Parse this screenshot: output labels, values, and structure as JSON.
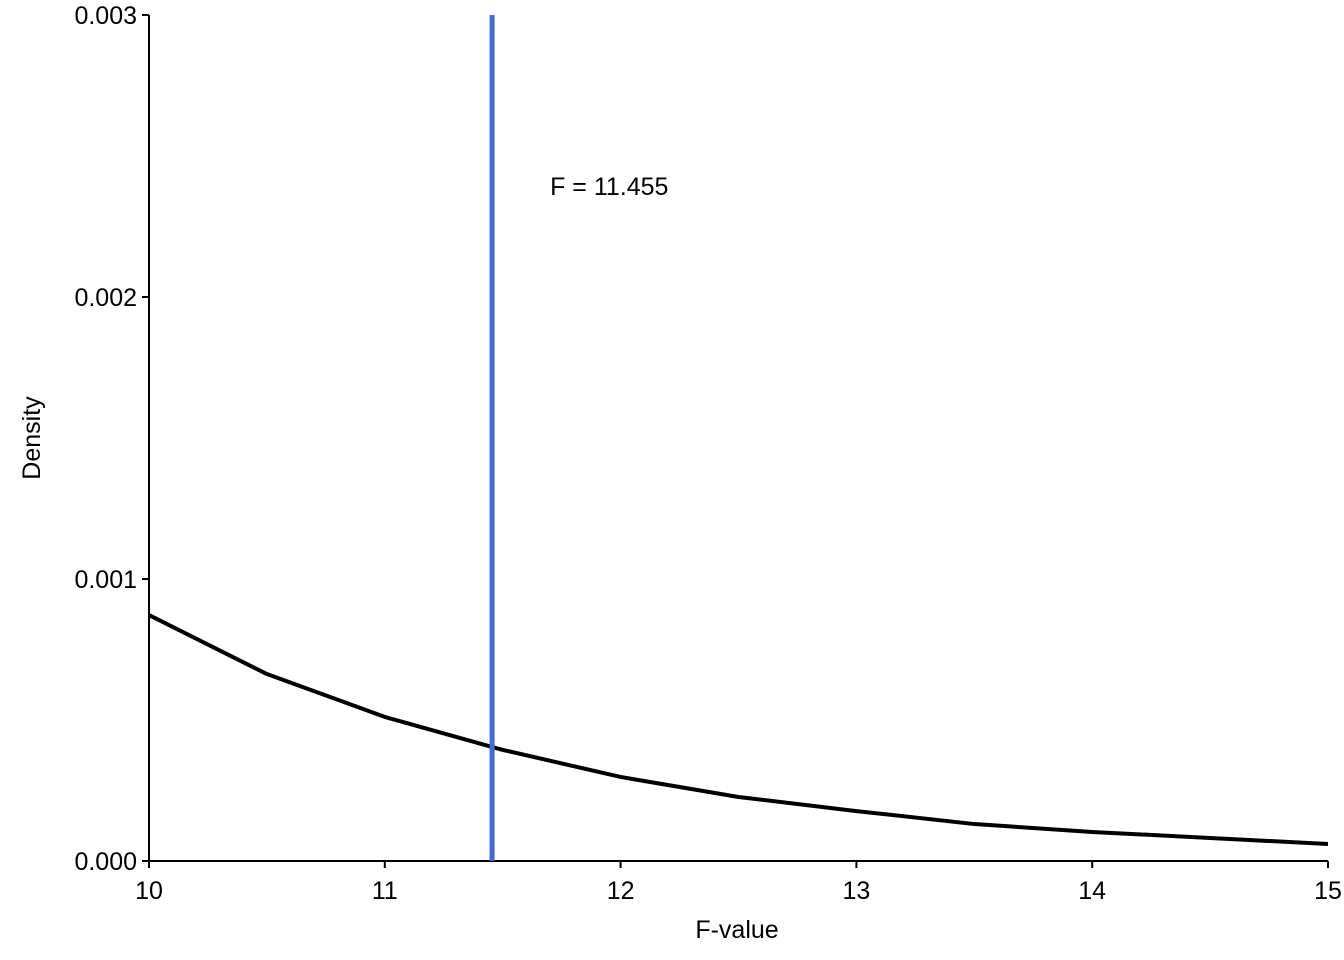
{
  "chart_data": {
    "type": "line",
    "x_label": "F-value",
    "y_label": "Density",
    "x": [
      10,
      10.5,
      11,
      11.5,
      12,
      12.5,
      13,
      13.5,
      14,
      14.5,
      15
    ],
    "series": [
      {
        "color": "#000000",
        "values": [
          0.000872,
          0.000663,
          0.000511,
          0.000394,
          0.000298,
          0.000227,
          0.000177,
          0.000131,
          0.000103,
          8.16e-05,
          6.03e-05
        ]
      }
    ],
    "xlim": [
      10,
      15
    ],
    "xticks": [
      10,
      11,
      12,
      13,
      14,
      15
    ],
    "ylim": [
      0,
      0.003
    ],
    "yticks": [
      {
        "value": 0,
        "label": "0.000"
      },
      {
        "value": 0.001,
        "label": "0.001"
      },
      {
        "value": 0.002,
        "label": "0.002"
      },
      {
        "value": 0.003,
        "label": "0.003"
      }
    ],
    "grid": false,
    "vline": {
      "x": 11.455,
      "color": "#4169e1"
    },
    "annotation": "F = 11.455"
  }
}
